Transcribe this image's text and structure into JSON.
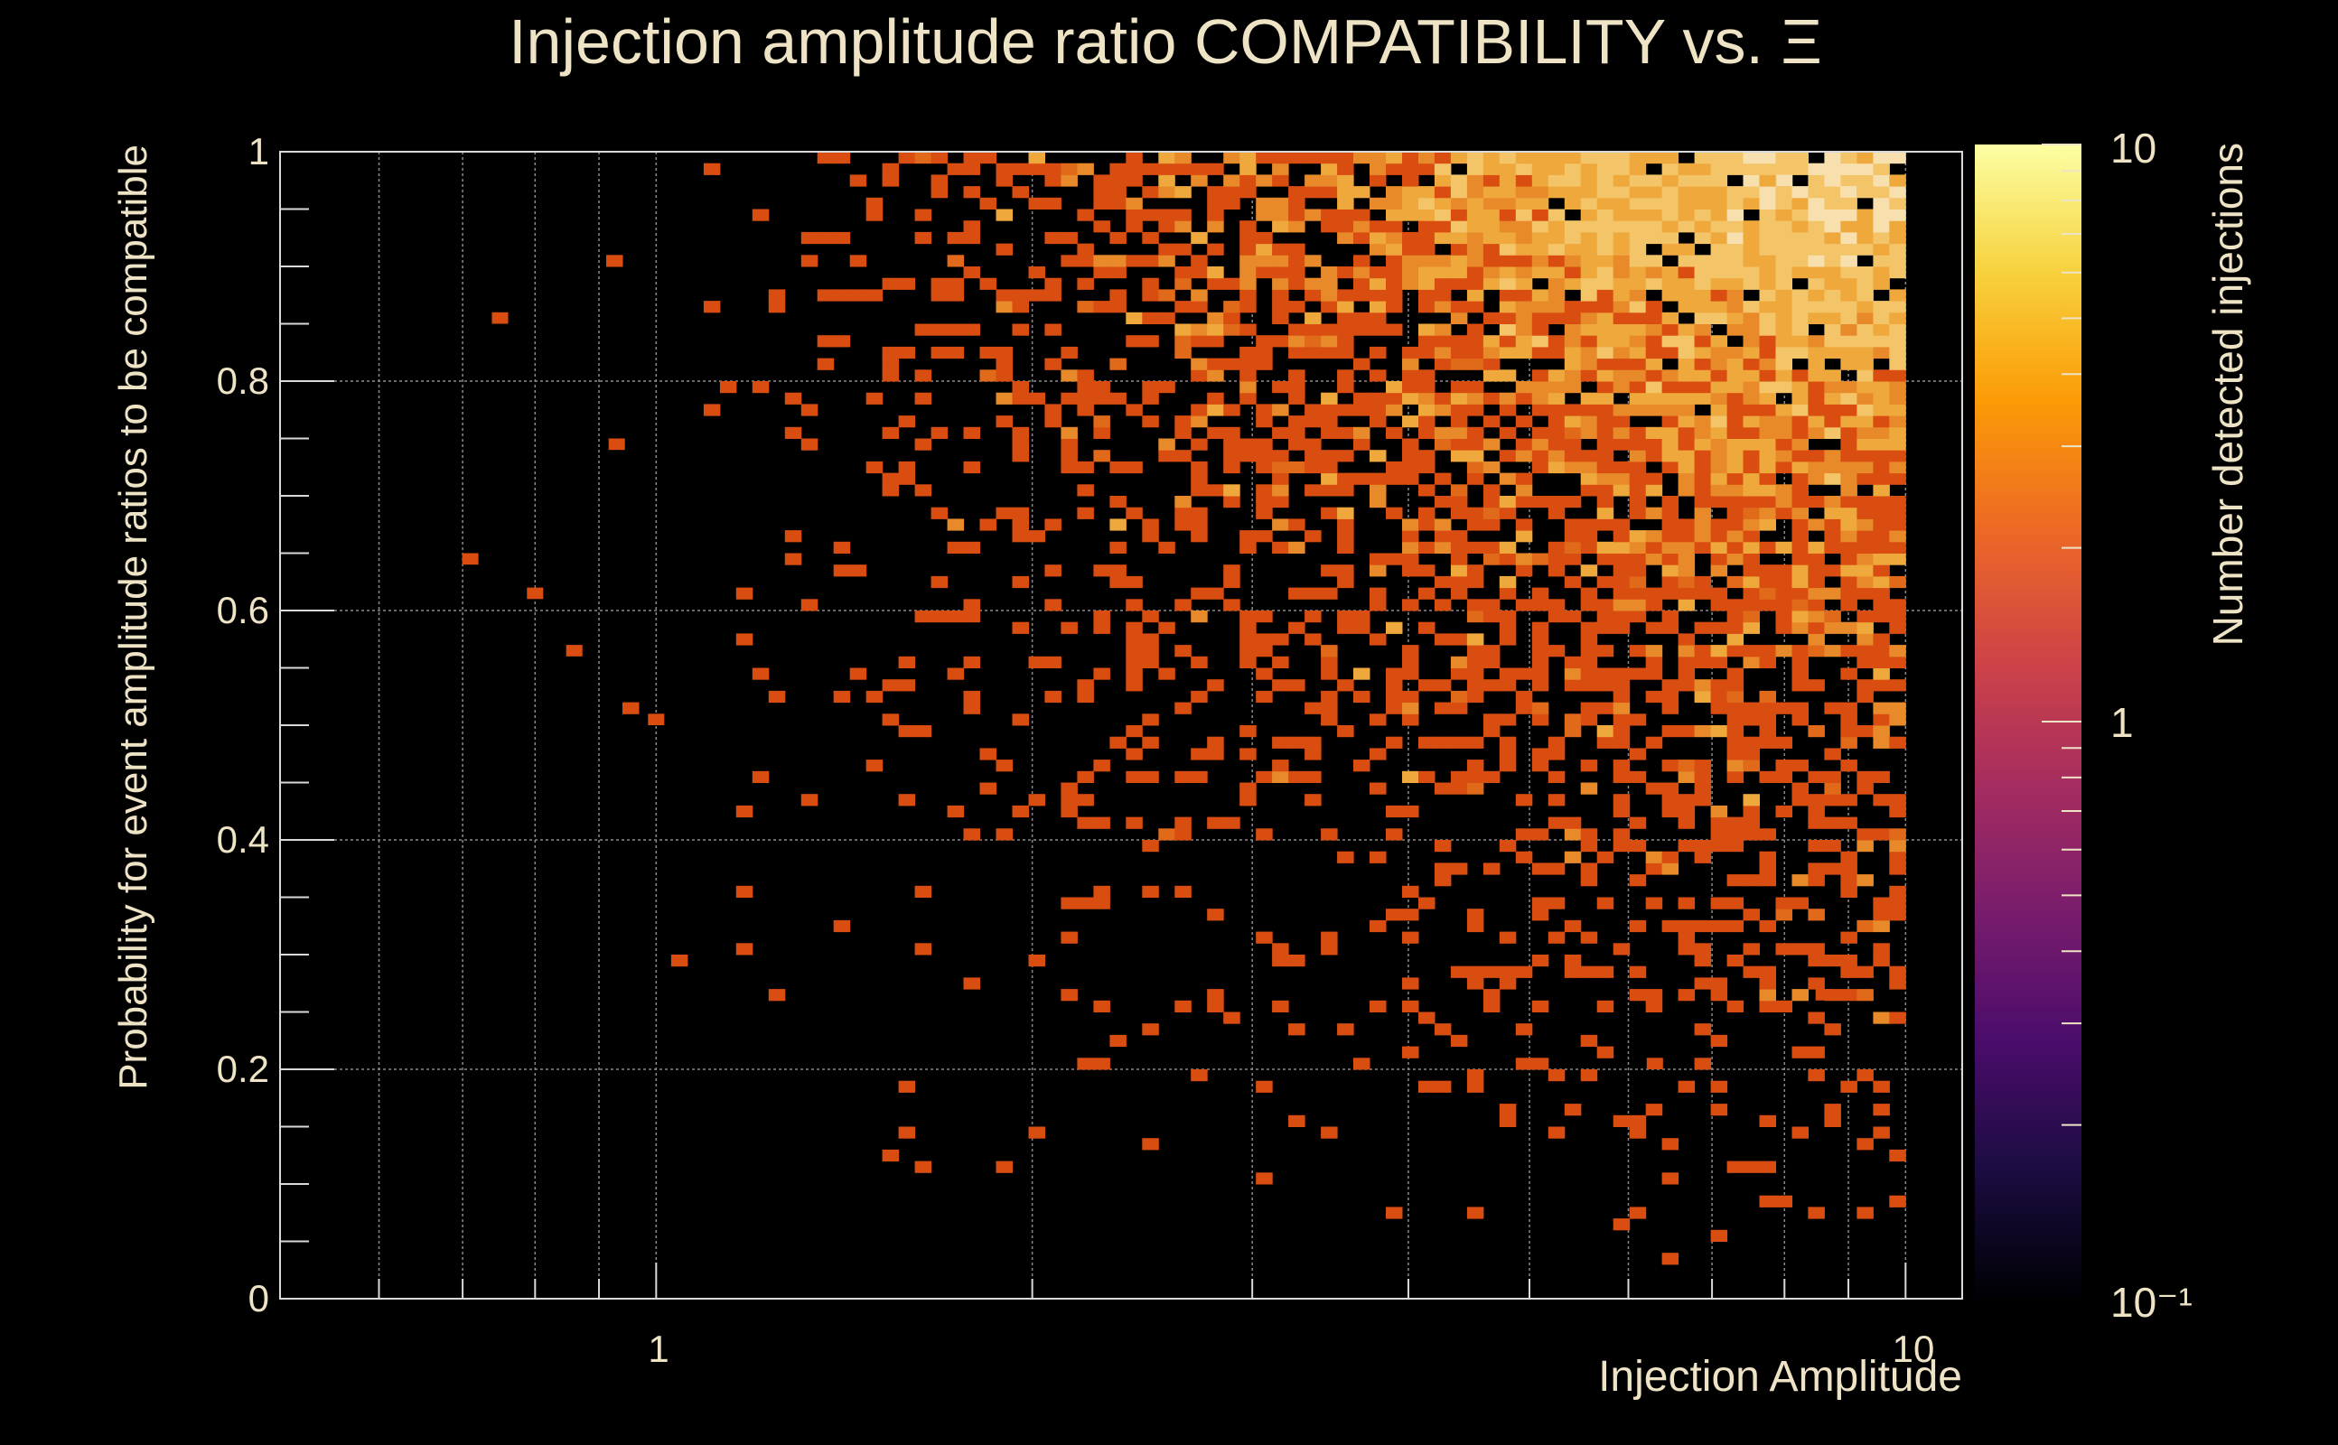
{
  "colors": {
    "background": "#000000",
    "text": "#efe3c6",
    "grid": "#8a8a8a",
    "frame": "#d9d9d9",
    "palette": [
      "#000004",
      "#1b0c41",
      "#4a0c6b",
      "#781c6d",
      "#a52c60",
      "#cf4446",
      "#ed6925",
      "#fb9b06",
      "#f7d13d",
      "#fcffa4"
    ],
    "cell_scale": [
      "#d94e10",
      "#e06a1a",
      "#e88a2a",
      "#efa83c",
      "#f3c468",
      "#f7e0ad"
    ]
  },
  "chart_data": {
    "type": "heatmap",
    "title": "Injection amplitude ratio COMPATIBILITY vs.  Ξ",
    "xlabel": "Injection Amplitude",
    "ylabel": "Probability for event amplitude ratios to be compatible",
    "xscale": "log",
    "xlim": [
      0.5,
      11.1
    ],
    "ylim": [
      0,
      1
    ],
    "x_tick_labels": [
      "1",
      "10"
    ],
    "y_tick_labels": [
      "0",
      "0.2",
      "0.4",
      "0.6",
      "0.8",
      "1"
    ],
    "grid": true,
    "colorbar": {
      "label": "Number detected injections",
      "scale": "log",
      "range": [
        0.1,
        10
      ],
      "tick_labels": [
        "10",
        "1",
        "10⁻¹"
      ]
    },
    "bins": {
      "nx": 100,
      "ny": 100,
      "x_log_range": [
        -0.3,
        1.0
      ],
      "y_range": [
        0,
        1
      ]
    },
    "density_description": "2D histogram; counts mostly 1 at low amplitudes and low probability, increasing to ~10 near amplitude 6-10 and probability 0.9-1.0",
    "sample_cells": [
      {
        "x": 0.75,
        "y": 0.855,
        "count": 1
      },
      {
        "x": 0.71,
        "y": 0.645,
        "count": 1
      },
      {
        "x": 0.8,
        "y": 0.615,
        "count": 1
      },
      {
        "x": 0.86,
        "y": 0.565,
        "count": 1
      },
      {
        "x": 0.93,
        "y": 0.745,
        "count": 1
      },
      {
        "x": 1.0,
        "y": 0.505,
        "count": 1
      },
      {
        "x": 6.3,
        "y": 0.205,
        "count": 1
      },
      {
        "x": 8.6,
        "y": 0.265,
        "count": 1
      },
      {
        "x": 9.0,
        "y": 0.965,
        "count": 8
      },
      {
        "x": 8.0,
        "y": 0.975,
        "count": 10
      }
    ]
  }
}
